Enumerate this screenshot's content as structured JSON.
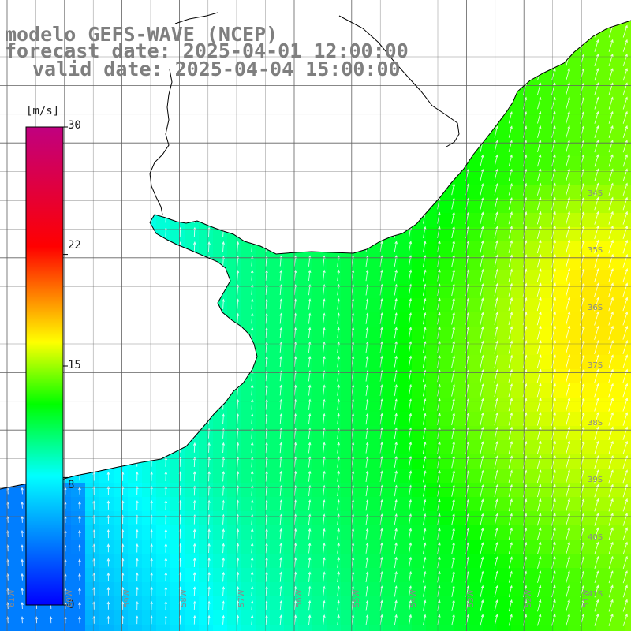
{
  "title": {
    "line1": "modelo GEFS-WAVE (NCEP)",
    "line2": "forecast date: 2025-04-01 12:00:00",
    "line3": "valid date: 2025-04-04 15:00:00"
  },
  "colorbar": {
    "unit": "[m/s]",
    "min": 0,
    "max": 30,
    "ticks": [
      {
        "value": 30,
        "label": "30"
      },
      {
        "value": 22,
        "label": "22"
      },
      {
        "value": 15,
        "label": "15"
      },
      {
        "value": 8,
        "label": "8"
      },
      {
        "value": 0,
        "label": "0"
      }
    ],
    "colors": [
      "#0000ff",
      "#00ffff",
      "#00ff00",
      "#ffff00",
      "#ff0000",
      "#c00080"
    ]
  },
  "grid": {
    "latitude_labels": [
      "34S",
      "35S",
      "36S",
      "37S",
      "38S",
      "39S",
      "40S",
      "41S"
    ],
    "longitude_labels": [
      "61W",
      "60W",
      "59W",
      "58W",
      "57W",
      "56W",
      "55W",
      "54W",
      "53W",
      "52W",
      "51W"
    ]
  },
  "map_data": {
    "variable": "wind speed",
    "unit": "m/s",
    "wind_direction": "northward to north-northeastward",
    "speed_range_observed": [
      5,
      17
    ],
    "land_color": "#ffffff",
    "coastline_color": "#000000"
  }
}
